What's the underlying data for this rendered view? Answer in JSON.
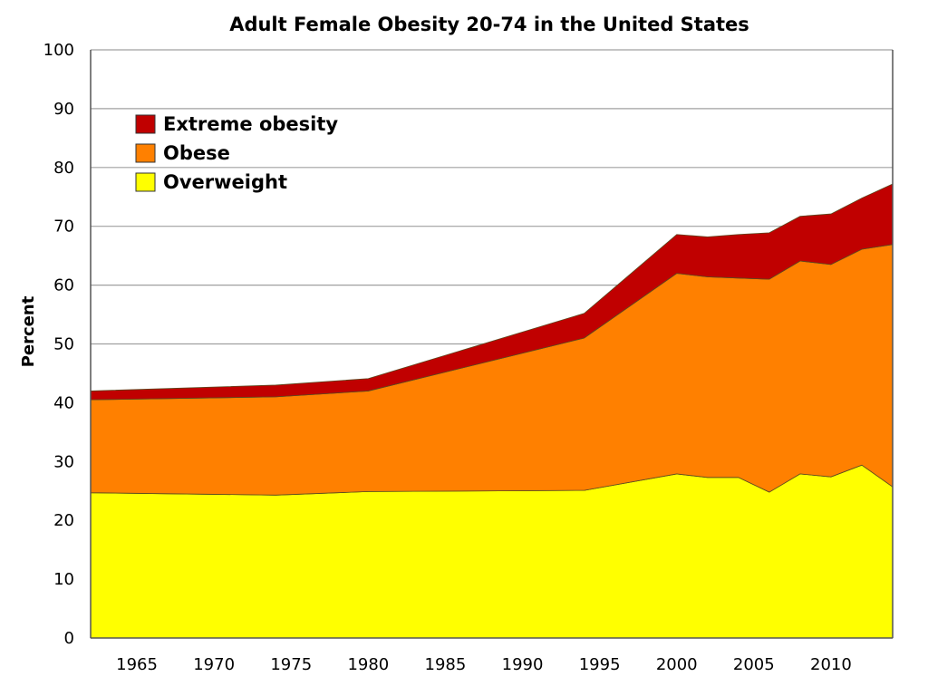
{
  "chart_data": {
    "type": "area",
    "stacked": true,
    "title": "Adult Female Obesity 20-74 in the United States",
    "xlabel": "",
    "ylabel": "Percent",
    "xlim": [
      1962,
      2014
    ],
    "ylim": [
      0,
      100
    ],
    "xticks": [
      1965,
      1970,
      1975,
      1980,
      1985,
      1990,
      1995,
      2000,
      2005,
      2010
    ],
    "yticks": [
      0,
      10,
      20,
      30,
      40,
      50,
      60,
      70,
      80,
      90,
      100
    ],
    "grid": "horizontal",
    "legend_position": "top-left",
    "x": [
      1962,
      1974,
      1980,
      1994,
      2000,
      2002,
      2004,
      2006,
      2008,
      2010,
      2012,
      2014
    ],
    "series": [
      {
        "name": "Overweight",
        "color": "#ffff00",
        "values": [
          24.7,
          24.3,
          24.9,
          25.1,
          27.9,
          27.3,
          27.3,
          24.8,
          27.9,
          27.4,
          29.4,
          25.7
        ]
      },
      {
        "name": "Obese",
        "color": "#ff8000",
        "values": [
          15.8,
          16.7,
          17.1,
          25.9,
          34.1,
          34.1,
          33.9,
          36.2,
          36.2,
          36.1,
          36.7,
          41.2
        ]
      },
      {
        "name": "Extreme obesity",
        "color": "#c00000",
        "values": [
          1.5,
          2.0,
          2.1,
          4.2,
          6.6,
          6.8,
          7.4,
          7.9,
          7.6,
          8.6,
          8.7,
          10.3
        ]
      }
    ]
  }
}
